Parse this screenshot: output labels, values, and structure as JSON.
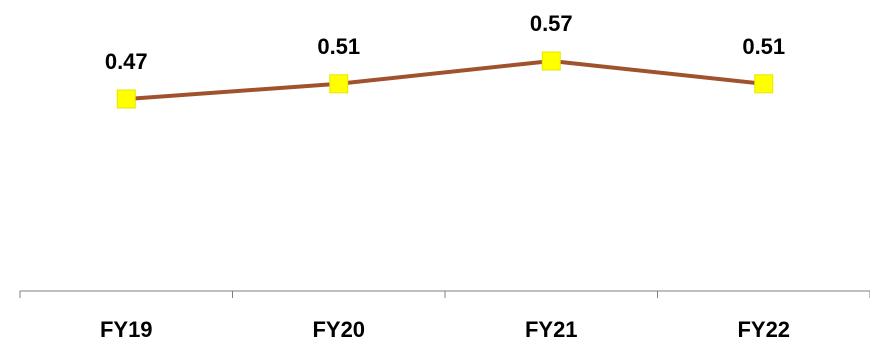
{
  "chart_data": {
    "type": "line",
    "categories": [
      "FY19",
      "FY20",
      "FY21",
      "FY22"
    ],
    "series": [
      {
        "values": [
          0.47,
          0.51,
          0.57,
          0.51
        ],
        "data_labels": [
          "0.47",
          "0.51",
          "0.57",
          "0.51"
        ]
      }
    ],
    "y_axis_visible": false,
    "grid": false,
    "legend": "none",
    "colors": {
      "line": "#A0522D",
      "marker": "#FFFF00",
      "axis": "#808080",
      "text": "#000000"
    }
  }
}
